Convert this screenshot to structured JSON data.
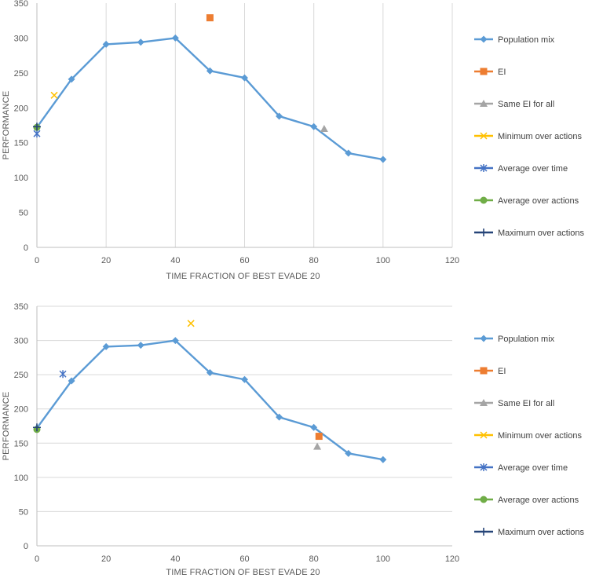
{
  "chart_data": [
    {
      "type": "line",
      "xlabel": "TIME FRACTION OF BEST EVADE 20",
      "ylabel": "PERFORMANCE",
      "xlim": [
        0,
        120
      ],
      "ylim": [
        0,
        350
      ],
      "xticks": [
        "0",
        "20",
        "40",
        "60",
        "80",
        "100",
        "120"
      ],
      "yticks": [
        "0",
        "50",
        "100",
        "150",
        "200",
        "250",
        "300",
        "350"
      ],
      "grid": "vertical",
      "legend": "right",
      "series": [
        {
          "name": "Population mix",
          "marker": "diamond",
          "color": "#5B9BD5",
          "line": true,
          "x": [
            0,
            10,
            20,
            30,
            40,
            50,
            60,
            70,
            80,
            90,
            100
          ],
          "y": [
            172,
            241,
            291,
            294,
            300,
            253,
            243,
            188,
            173,
            135,
            126
          ]
        },
        {
          "name": "EI",
          "marker": "square",
          "color": "#ED7D31",
          "line": false,
          "x": [
            50
          ],
          "y": [
            329
          ]
        },
        {
          "name": "Same EI for all",
          "marker": "triangle",
          "color": "#A5A5A5",
          "line": false,
          "x": [
            83
          ],
          "y": [
            170
          ]
        },
        {
          "name": "Minimum over actions",
          "marker": "x",
          "color": "#FFC000",
          "line": false,
          "x": [
            5
          ],
          "y": [
            218
          ]
        },
        {
          "name": "Average over time",
          "marker": "star",
          "color": "#4472C4",
          "line": false,
          "x": [
            0
          ],
          "y": [
            163
          ]
        },
        {
          "name": "Average over actions",
          "marker": "circle",
          "color": "#70AD47",
          "line": false,
          "x": [
            0
          ],
          "y": [
            172
          ]
        },
        {
          "name": "Maximum over actions",
          "marker": "plus",
          "color": "#264478",
          "line": false,
          "x": [
            0
          ],
          "y": [
            173
          ]
        }
      ]
    },
    {
      "type": "line",
      "xlabel": "TIME FRACTION OF BEST EVADE 20",
      "ylabel": "PERFORMANCE",
      "xlim": [
        0,
        120
      ],
      "ylim": [
        0,
        350
      ],
      "xticks": [
        "0",
        "20",
        "40",
        "60",
        "80",
        "100",
        "120"
      ],
      "yticks": [
        "0",
        "50",
        "100",
        "150",
        "200",
        "250",
        "300",
        "350"
      ],
      "grid": "horizontal",
      "legend": "right",
      "series": [
        {
          "name": "Population mix",
          "marker": "diamond",
          "color": "#5B9BD5",
          "line": true,
          "x": [
            0,
            10,
            20,
            30,
            40,
            50,
            60,
            70,
            80,
            90,
            100
          ],
          "y": [
            172,
            241,
            291,
            293,
            300,
            253,
            243,
            188,
            173,
            135,
            126
          ]
        },
        {
          "name": "EI",
          "marker": "square",
          "color": "#ED7D31",
          "line": false,
          "x": [
            81.5
          ],
          "y": [
            160
          ]
        },
        {
          "name": "Same EI for all",
          "marker": "triangle",
          "color": "#A5A5A5",
          "line": false,
          "x": [
            81
          ],
          "y": [
            145
          ]
        },
        {
          "name": "Minimum over actions",
          "marker": "x",
          "color": "#FFC000",
          "line": false,
          "x": [
            44.5
          ],
          "y": [
            325
          ]
        },
        {
          "name": "Average over time",
          "marker": "star",
          "color": "#4472C4",
          "line": false,
          "x": [
            7.5
          ],
          "y": [
            251
          ]
        },
        {
          "name": "Average over actions",
          "marker": "circle",
          "color": "#70AD47",
          "line": false,
          "x": [
            0
          ],
          "y": [
            170
          ]
        },
        {
          "name": "Maximum over actions",
          "marker": "plus",
          "color": "#264478",
          "line": false,
          "x": [
            0
          ],
          "y": [
            173
          ]
        }
      ]
    }
  ]
}
